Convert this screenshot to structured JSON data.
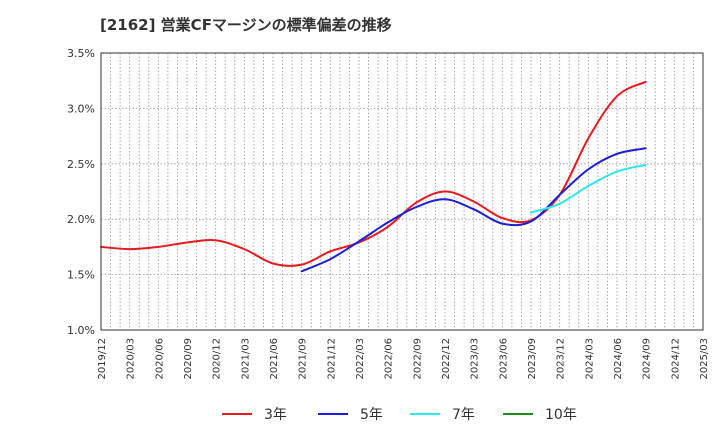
{
  "chart_data": {
    "type": "line",
    "title": "[2162]  営業CFマージンの標準偏差の推移",
    "xlabel": "",
    "ylabel": "",
    "ylim": [
      0.01,
      0.035
    ],
    "y_ticks": [
      "1.0%",
      "1.5%",
      "2.0%",
      "2.5%",
      "3.0%",
      "3.5%"
    ],
    "x_ticks": [
      "2019/12",
      "2020/03",
      "2020/06",
      "2020/09",
      "2020/12",
      "2021/03",
      "2021/06",
      "2021/09",
      "2021/12",
      "2022/03",
      "2022/06",
      "2022/09",
      "2022/12",
      "2023/03",
      "2023/06",
      "2023/09",
      "2023/12",
      "2024/03",
      "2024/06",
      "2024/09",
      "2024/12",
      "2025/03"
    ],
    "grid": true,
    "legend_position": "bottom",
    "series": [
      {
        "name": "3年",
        "color": "#e8191f",
        "x": [
          "2019/12",
          "2020/03",
          "2020/06",
          "2020/09",
          "2020/12",
          "2021/03",
          "2021/06",
          "2021/09",
          "2021/12",
          "2022/03",
          "2022/06",
          "2022/09",
          "2022/12",
          "2023/03",
          "2023/06",
          "2023/09",
          "2023/12",
          "2024/03",
          "2024/06",
          "2024/09"
        ],
        "values": [
          0.0175,
          0.0173,
          0.0175,
          0.0179,
          0.0181,
          0.0173,
          0.016,
          0.0159,
          0.0171,
          0.0179,
          0.0193,
          0.0215,
          0.0225,
          0.0216,
          0.0201,
          0.0199,
          0.0222,
          0.0273,
          0.0311,
          0.0324
        ]
      },
      {
        "name": "5年",
        "color": "#1c1fd6",
        "x": [
          "2021/09",
          "2021/12",
          "2022/03",
          "2022/06",
          "2022/09",
          "2022/12",
          "2023/03",
          "2023/06",
          "2023/09",
          "2023/12",
          "2024/03",
          "2024/06",
          "2024/09"
        ],
        "values": [
          0.0153,
          0.0164,
          0.018,
          0.0197,
          0.0211,
          0.0218,
          0.0209,
          0.0196,
          0.0198,
          0.0222,
          0.0245,
          0.0259,
          0.0264
        ]
      },
      {
        "name": "7年",
        "color": "#2ee8f0",
        "x": [
          "2023/09",
          "2023/12",
          "2024/03",
          "2024/06",
          "2024/09"
        ],
        "values": [
          0.0206,
          0.0214,
          0.023,
          0.0243,
          0.0249
        ]
      },
      {
        "name": "10年",
        "color": "#1e8c1e",
        "x": [],
        "values": []
      }
    ]
  }
}
